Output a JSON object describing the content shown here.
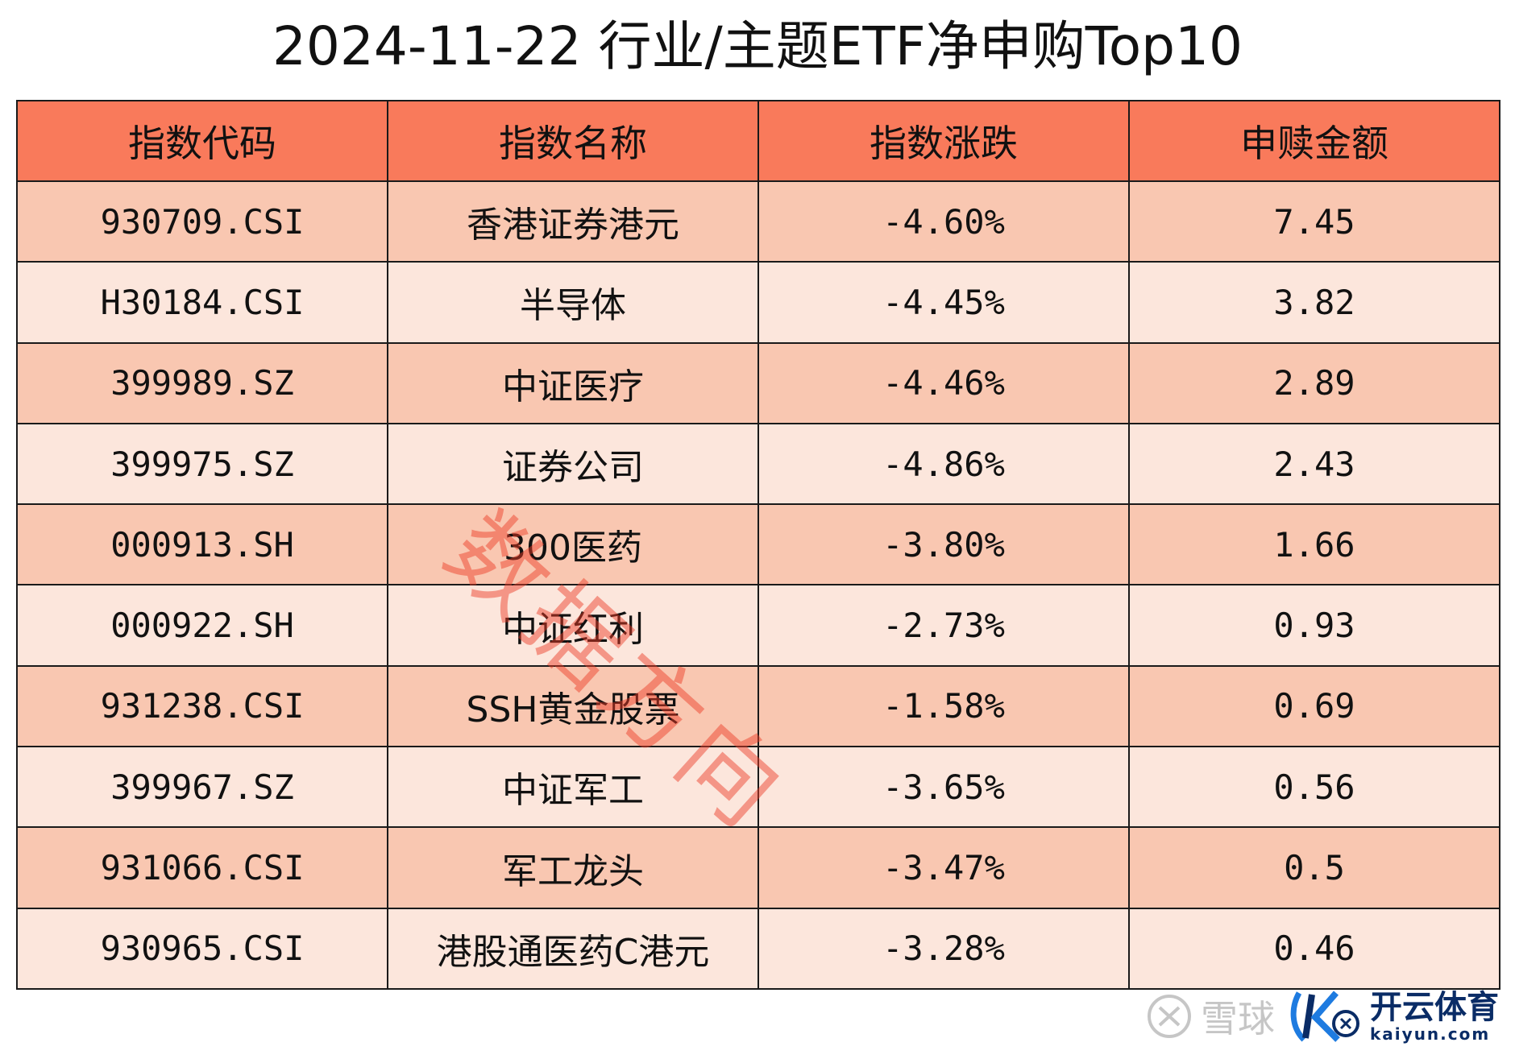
{
  "title": "2024-11-22 行业/主题ETF净申购Top10",
  "colors": {
    "header_bg": "#F97A5B",
    "row_dark": "#F9C7B1",
    "row_light": "#FCE6DC",
    "watermark": "#EC3C28",
    "border": "#1A1A1A"
  },
  "table": {
    "headers": [
      "指数代码",
      "指数名称",
      "指数涨跌",
      "申赎金额"
    ],
    "rows": [
      {
        "code": "930709.CSI",
        "name": "香港证券港元",
        "change": "-4.60%",
        "amount": "7.45"
      },
      {
        "code": "H30184.CSI",
        "name": "半导体",
        "change": "-4.45%",
        "amount": "3.82"
      },
      {
        "code": "399989.SZ",
        "name": "中证医疗",
        "change": "-4.46%",
        "amount": "2.89"
      },
      {
        "code": "399975.SZ",
        "name": "证券公司",
        "change": "-4.86%",
        "amount": "2.43"
      },
      {
        "code": "000913.SH",
        "name": "300医药",
        "change": "-3.80%",
        "amount": "1.66"
      },
      {
        "code": "000922.SH",
        "name": "中证红利",
        "change": "-2.73%",
        "amount": "0.93"
      },
      {
        "code": "931238.CSI",
        "name": "SSH黄金股票",
        "change": "-1.58%",
        "amount": "0.69"
      },
      {
        "code": "399967.SZ",
        "name": "中证军工",
        "change": "-3.65%",
        "amount": "0.56"
      },
      {
        "code": "931066.CSI",
        "name": "军工龙头",
        "change": "-3.47%",
        "amount": "0.5"
      },
      {
        "code": "930965.CSI",
        "name": "港股通医药C港元",
        "change": "-3.28%",
        "amount": "0.46"
      }
    ]
  },
  "watermark": "数据方向",
  "footer": {
    "xueqiu_label": "雪球",
    "xueqiu_icon": "xueqiu-logo-icon",
    "brand_cn": "开云体育",
    "brand_en": "kaiyun.com",
    "brand_icon": "kaiyun-logo-icon"
  }
}
